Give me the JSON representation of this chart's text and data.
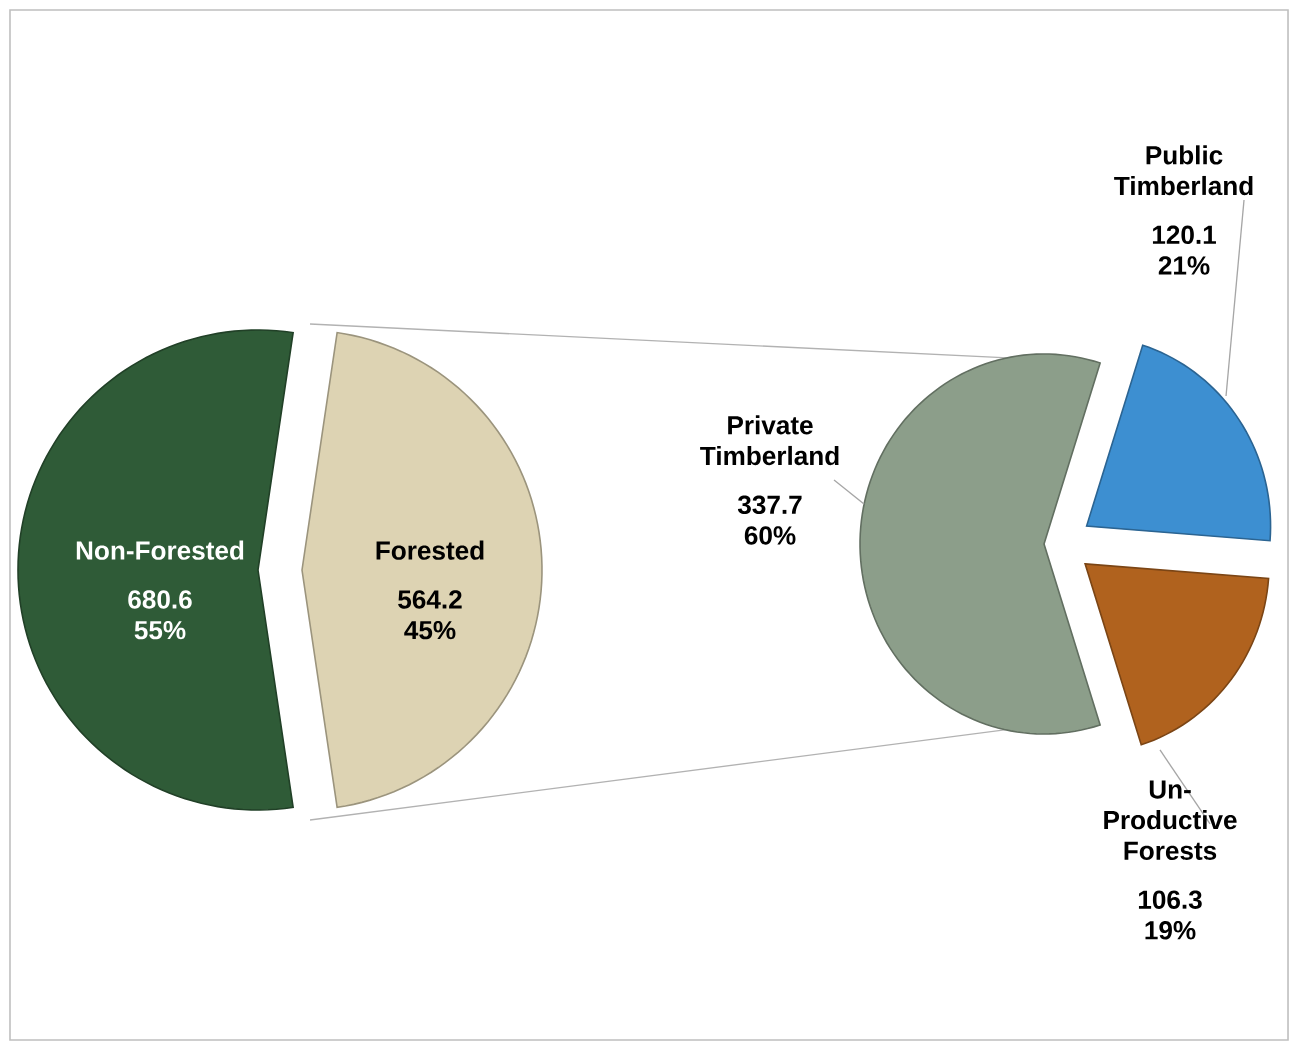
{
  "chart_data": [
    {
      "type": "pie",
      "categories": [
        "Non-Forested",
        "Forested"
      ],
      "values": [
        680.6,
        564.2
      ],
      "colors": [
        "#2f5b37",
        "#ddd3b3"
      ],
      "value_labels": [
        "680.6 55%",
        "564.2 45%"
      ]
    },
    {
      "type": "pie",
      "categories": [
        "Private Timberland",
        "Public Timberland",
        "Un-Productive Forests"
      ],
      "values": [
        337.7,
        120.1,
        106.3
      ],
      "colors": [
        "#8c9e8a",
        "#3d8fd1",
        "#b0621e"
      ],
      "value_labels": [
        "337.7 60%",
        "120.1 21%",
        "106.3 19%"
      ]
    }
  ]
}
